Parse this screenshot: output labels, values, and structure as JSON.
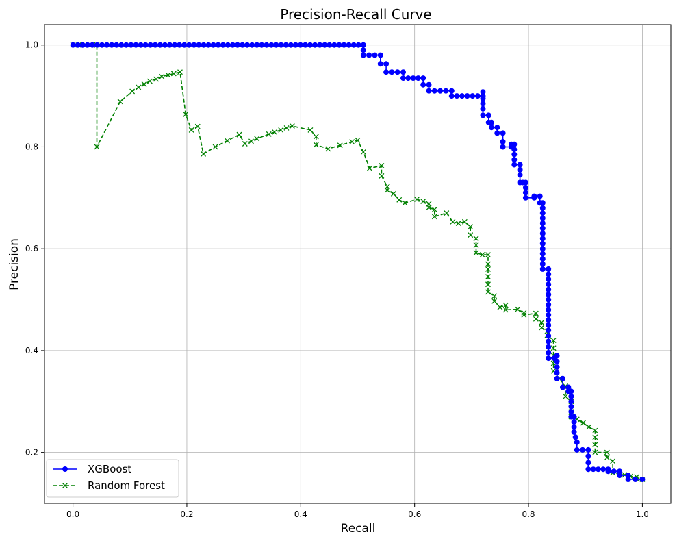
{
  "chart_data": {
    "type": "line",
    "title": "Precision-Recall Curve",
    "xlabel": "Recall",
    "ylabel": "Precision",
    "xlim": [
      -0.05,
      1.05
    ],
    "ylim": [
      0.1,
      1.04
    ],
    "x_ticks": [
      "0.0",
      "0.2",
      "0.4",
      "0.6",
      "0.8",
      "1.0"
    ],
    "y_ticks": [
      "0.2",
      "0.4",
      "0.6",
      "0.8",
      "1.0"
    ],
    "grid": true,
    "legend_position": "lower-left",
    "series": [
      {
        "name": "XGBoost",
        "color": "#0000ff",
        "line_style": "solid",
        "marker": "circle",
        "points": [
          [
            0.0,
            1.0
          ],
          [
            0.51,
            1.0
          ],
          [
            0.51,
            0.98
          ],
          [
            0.54,
            0.98
          ],
          [
            0.54,
            0.963
          ],
          [
            0.55,
            0.963
          ],
          [
            0.55,
            0.947
          ],
          [
            0.58,
            0.947
          ],
          [
            0.58,
            0.935
          ],
          [
            0.615,
            0.935
          ],
          [
            0.615,
            0.922
          ],
          [
            0.625,
            0.922
          ],
          [
            0.625,
            0.91
          ],
          [
            0.665,
            0.91
          ],
          [
            0.665,
            0.9
          ],
          [
            0.72,
            0.9
          ],
          [
            0.72,
            0.908
          ],
          [
            0.72,
            0.895
          ],
          [
            0.72,
            0.875
          ],
          [
            0.72,
            0.862
          ],
          [
            0.73,
            0.862
          ],
          [
            0.73,
            0.848
          ],
          [
            0.735,
            0.848
          ],
          [
            0.735,
            0.838
          ],
          [
            0.745,
            0.838
          ],
          [
            0.745,
            0.827
          ],
          [
            0.755,
            0.827
          ],
          [
            0.755,
            0.81
          ],
          [
            0.755,
            0.8
          ],
          [
            0.77,
            0.8
          ],
          [
            0.77,
            0.805
          ],
          [
            0.775,
            0.805
          ],
          [
            0.775,
            0.765
          ],
          [
            0.785,
            0.765
          ],
          [
            0.785,
            0.745
          ],
          [
            0.785,
            0.73
          ],
          [
            0.79,
            0.73
          ],
          [
            0.795,
            0.73
          ],
          [
            0.795,
            0.71
          ],
          [
            0.795,
            0.7
          ],
          [
            0.81,
            0.7
          ],
          [
            0.81,
            0.703
          ],
          [
            0.82,
            0.703
          ],
          [
            0.82,
            0.69
          ],
          [
            0.825,
            0.69
          ],
          [
            0.825,
            0.62
          ],
          [
            0.825,
            0.56
          ],
          [
            0.835,
            0.56
          ],
          [
            0.835,
            0.5
          ],
          [
            0.835,
            0.44
          ],
          [
            0.835,
            0.385
          ],
          [
            0.845,
            0.385
          ],
          [
            0.85,
            0.39
          ],
          [
            0.85,
            0.345
          ],
          [
            0.86,
            0.345
          ],
          [
            0.86,
            0.328
          ],
          [
            0.87,
            0.328
          ],
          [
            0.87,
            0.32
          ],
          [
            0.875,
            0.32
          ],
          [
            0.875,
            0.27
          ],
          [
            0.88,
            0.27
          ],
          [
            0.88,
            0.24
          ],
          [
            0.885,
            0.22
          ],
          [
            0.885,
            0.205
          ],
          [
            0.905,
            0.205
          ],
          [
            0.905,
            0.18
          ],
          [
            0.905,
            0.167
          ],
          [
            0.94,
            0.167
          ],
          [
            0.94,
            0.163
          ],
          [
            0.96,
            0.163
          ],
          [
            0.96,
            0.155
          ],
          [
            0.975,
            0.155
          ],
          [
            0.975,
            0.147
          ],
          [
            1.0,
            0.147
          ]
        ]
      },
      {
        "name": "Random Forest",
        "color": "#008000",
        "line_style": "dashed",
        "marker": "x",
        "points": [
          [
            0.0,
            1.0
          ],
          [
            0.01,
            1.0
          ],
          [
            0.02,
            1.0
          ],
          [
            0.03,
            1.0
          ],
          [
            0.042,
            1.0
          ],
          [
            0.042,
            0.8
          ],
          [
            0.083,
            0.889
          ],
          [
            0.104,
            0.909
          ],
          [
            0.115,
            0.917
          ],
          [
            0.125,
            0.923
          ],
          [
            0.135,
            0.929
          ],
          [
            0.146,
            0.933
          ],
          [
            0.156,
            0.938
          ],
          [
            0.167,
            0.941
          ],
          [
            0.177,
            0.944
          ],
          [
            0.188,
            0.947
          ],
          [
            0.198,
            0.864
          ],
          [
            0.208,
            0.833
          ],
          [
            0.219,
            0.84
          ],
          [
            0.229,
            0.786
          ],
          [
            0.25,
            0.8
          ],
          [
            0.271,
            0.812
          ],
          [
            0.292,
            0.824
          ],
          [
            0.302,
            0.806
          ],
          [
            0.313,
            0.811
          ],
          [
            0.323,
            0.816
          ],
          [
            0.344,
            0.825
          ],
          [
            0.354,
            0.829
          ],
          [
            0.365,
            0.833
          ],
          [
            0.375,
            0.837
          ],
          [
            0.385,
            0.841
          ],
          [
            0.417,
            0.833
          ],
          [
            0.427,
            0.82
          ],
          [
            0.427,
            0.804
          ],
          [
            0.448,
            0.796
          ],
          [
            0.469,
            0.803
          ],
          [
            0.49,
            0.81
          ],
          [
            0.5,
            0.813
          ],
          [
            0.51,
            0.79
          ],
          [
            0.521,
            0.758
          ],
          [
            0.542,
            0.763
          ],
          [
            0.542,
            0.743
          ],
          [
            0.552,
            0.722
          ],
          [
            0.552,
            0.715
          ],
          [
            0.563,
            0.708
          ],
          [
            0.573,
            0.696
          ],
          [
            0.583,
            0.69
          ],
          [
            0.604,
            0.697
          ],
          [
            0.615,
            0.693
          ],
          [
            0.625,
            0.688
          ],
          [
            0.625,
            0.681
          ],
          [
            0.635,
            0.677
          ],
          [
            0.635,
            0.663
          ],
          [
            0.656,
            0.67
          ],
          [
            0.667,
            0.653
          ],
          [
            0.677,
            0.65
          ],
          [
            0.688,
            0.653
          ],
          [
            0.698,
            0.643
          ],
          [
            0.698,
            0.627
          ],
          [
            0.708,
            0.62
          ],
          [
            0.708,
            0.607
          ],
          [
            0.708,
            0.592
          ],
          [
            0.719,
            0.588
          ],
          [
            0.729,
            0.588
          ],
          [
            0.729,
            0.57
          ],
          [
            0.729,
            0.56
          ],
          [
            0.729,
            0.545
          ],
          [
            0.729,
            0.53
          ],
          [
            0.729,
            0.515
          ],
          [
            0.74,
            0.507
          ],
          [
            0.74,
            0.497
          ],
          [
            0.75,
            0.485
          ],
          [
            0.76,
            0.489
          ],
          [
            0.76,
            0.48
          ],
          [
            0.781,
            0.481
          ],
          [
            0.792,
            0.474
          ],
          [
            0.792,
            0.47
          ],
          [
            0.813,
            0.473
          ],
          [
            0.813,
            0.462
          ],
          [
            0.823,
            0.455
          ],
          [
            0.823,
            0.445
          ],
          [
            0.833,
            0.438
          ],
          [
            0.833,
            0.43
          ],
          [
            0.844,
            0.42
          ],
          [
            0.844,
            0.405
          ],
          [
            0.844,
            0.39
          ],
          [
            0.844,
            0.375
          ],
          [
            0.844,
            0.36
          ],
          [
            0.854,
            0.345
          ],
          [
            0.865,
            0.33
          ],
          [
            0.865,
            0.31
          ],
          [
            0.875,
            0.3
          ],
          [
            0.875,
            0.28
          ],
          [
            0.875,
            0.27
          ],
          [
            0.885,
            0.265
          ],
          [
            0.896,
            0.258
          ],
          [
            0.906,
            0.25
          ],
          [
            0.917,
            0.243
          ],
          [
            0.917,
            0.23
          ],
          [
            0.917,
            0.215
          ],
          [
            0.917,
            0.2
          ],
          [
            0.938,
            0.2
          ],
          [
            0.938,
            0.19
          ],
          [
            0.948,
            0.183
          ],
          [
            0.948,
            0.16
          ],
          [
            0.969,
            0.156
          ],
          [
            0.979,
            0.153
          ],
          [
            0.99,
            0.152
          ],
          [
            0.99,
            0.148
          ],
          [
            1.0,
            0.147
          ]
        ]
      }
    ]
  }
}
